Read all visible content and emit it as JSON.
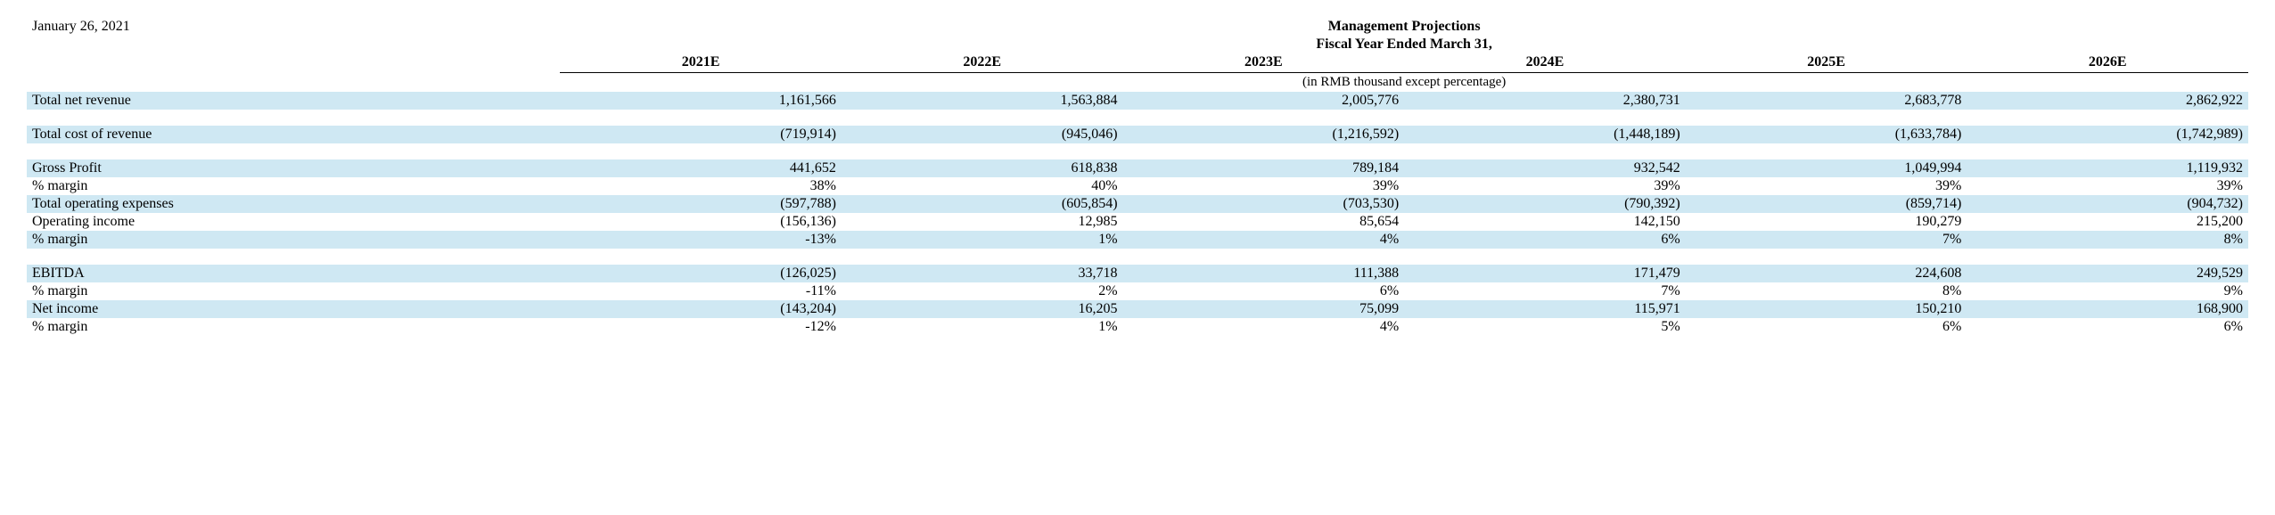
{
  "document_date": "January 26, 2021",
  "header": {
    "title_line1": "Management Projections",
    "title_line2": "Fiscal Year Ended March 31,",
    "unit_note": "(in RMB thousand except percentage)"
  },
  "columns": [
    "2021E",
    "2022E",
    "2023E",
    "2024E",
    "2025E",
    "2026E"
  ],
  "rows": [
    {
      "label": "Total net revenue",
      "stripe": true,
      "vals": [
        "1,161,566",
        "1,563,884",
        "2,005,776",
        "2,380,731",
        "2,683,778",
        "2,862,922"
      ]
    },
    {
      "label": "",
      "spacer": true
    },
    {
      "label": "Total cost of revenue",
      "stripe": true,
      "vals": [
        "(719,914)",
        "(945,046)",
        "(1,216,592)",
        "(1,448,189)",
        "(1,633,784)",
        "(1,742,989)"
      ]
    },
    {
      "label": "",
      "spacer": true
    },
    {
      "label": "Gross Profit",
      "stripe": true,
      "vals": [
        "441,652",
        "618,838",
        "789,184",
        "932,542",
        "1,049,994",
        "1,119,932"
      ]
    },
    {
      "label": "% margin",
      "stripe": false,
      "vals": [
        "38%",
        "40%",
        "39%",
        "39%",
        "39%",
        "39%"
      ]
    },
    {
      "label": "Total operating expenses",
      "stripe": true,
      "vals": [
        "(597,788)",
        "(605,854)",
        "(703,530)",
        "(790,392)",
        "(859,714)",
        "(904,732)"
      ]
    },
    {
      "label": "Operating income",
      "stripe": false,
      "vals": [
        "(156,136)",
        "12,985",
        "85,654",
        "142,150",
        "190,279",
        "215,200"
      ]
    },
    {
      "label": "% margin",
      "stripe": true,
      "vals": [
        "-13%",
        "1%",
        "4%",
        "6%",
        "7%",
        "8%"
      ]
    },
    {
      "label": "",
      "spacer": true
    },
    {
      "label": "EBITDA",
      "stripe": true,
      "vals": [
        "(126,025)",
        "33,718",
        "111,388",
        "171,479",
        "224,608",
        "249,529"
      ]
    },
    {
      "label": "% margin",
      "stripe": false,
      "vals": [
        "-11%",
        "2%",
        "6%",
        "7%",
        "8%",
        "9%"
      ]
    },
    {
      "label": "Net income",
      "stripe": true,
      "vals": [
        "(143,204)",
        "16,205",
        "75,099",
        "115,971",
        "150,210",
        "168,900"
      ]
    },
    {
      "label": "% margin",
      "stripe": false,
      "vals": [
        "-12%",
        "1%",
        "4%",
        "5%",
        "6%",
        "6%"
      ]
    }
  ],
  "colors": {
    "stripe_bg": "#cfe8f3",
    "text": "#000000",
    "background": "#ffffff",
    "border": "#000000"
  },
  "typography": {
    "font_family": "Times New Roman",
    "base_fontsize_pt": 12,
    "header_fontsize_pt": 12,
    "header_fontweight": "bold"
  },
  "table_meta": {
    "type": "table",
    "label_col_width_pct": 24,
    "value_col_width_pct": 12.66,
    "value_alignment": "right",
    "label_alignment": "left"
  }
}
